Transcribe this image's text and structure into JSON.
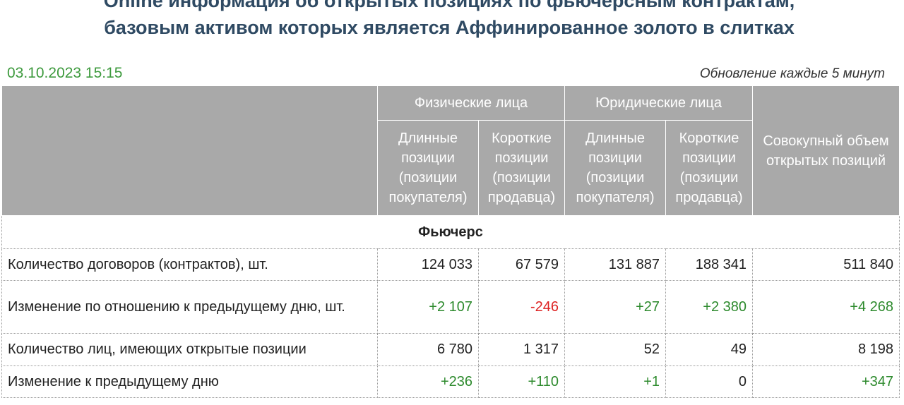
{
  "header": {
    "title_line1": "Online информация об открытых позициях по фьючерсным контрактам,",
    "title_line2": "базовым активом которых является Аффинированное золото в слитках",
    "date": "03.10.2023 15:15",
    "update_note": "Обновление каждые 5 минут"
  },
  "table": {
    "groups": [
      "Физические лица",
      "Юридические лица"
    ],
    "columns": [
      "Длинные позиции (позиции покупателя)",
      "Короткие позиции (позиции продавца)",
      "Длинные позиции (позиции покупателя)",
      "Короткие позиции (позиции продавца)"
    ],
    "total_column": "Совокупный объем открытых позиций",
    "section": "Фьючерс",
    "rows": [
      [
        "Количество договоров (контрактов), шт.",
        "124 033",
        "67 579",
        "131 887",
        "188 341",
        "511 840"
      ],
      [
        "Изменение по отношению к предыдущему дню, шт.",
        "+2 107",
        "-246",
        "+27",
        "+2 380",
        "+4 268"
      ],
      [
        "Количество лиц, имеющих открытые позиции",
        "6 780",
        "1 317",
        "52",
        "49",
        "8 198"
      ],
      [
        "Изменение к предыдущему дню",
        "+236",
        "+110",
        "+1",
        "0",
        "+347"
      ]
    ]
  }
}
